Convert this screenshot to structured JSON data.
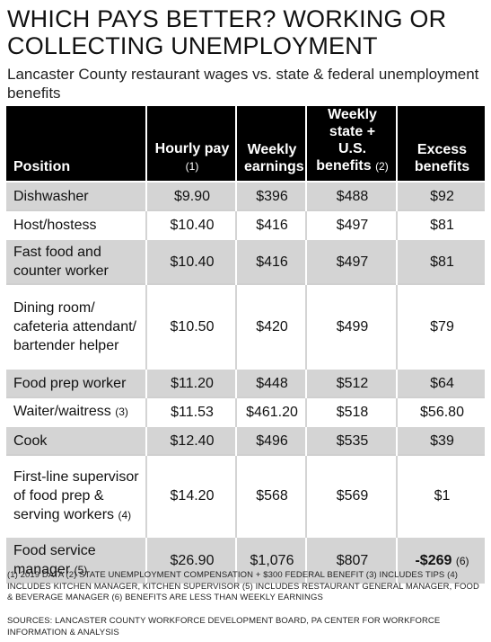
{
  "title": "WHICH PAYS BETTER? WORKING OR COLLECTING UNEMPLOYMENT",
  "subtitle": "Lancaster County restaurant wages vs. state & federal unemployment benefits",
  "table": {
    "headers": [
      {
        "label": "Position",
        "note": ""
      },
      {
        "label": "Hourly pay",
        "note": "(1)"
      },
      {
        "label": "Weekly earnings",
        "note": ""
      },
      {
        "label": "Weekly state + U.S. benefits",
        "note": "(2)"
      },
      {
        "label": "Excess benefits",
        "note": ""
      }
    ],
    "rows": [
      {
        "position": "Dishwasher",
        "note": "",
        "hourly": "$9.90",
        "weekly": "$396",
        "benefits": "$488",
        "excess": "$92",
        "excess_note": ""
      },
      {
        "position": "Host/hostess",
        "note": "",
        "hourly": "$10.40",
        "weekly": "$416",
        "benefits": "$497",
        "excess": "$81",
        "excess_note": ""
      },
      {
        "position": "Fast food and counter worker",
        "note": "",
        "hourly": "$10.40",
        "weekly": "$416",
        "benefits": "$497",
        "excess": "$81",
        "excess_note": ""
      },
      {
        "position": "Dining room/ cafeteria attendant/ bartender helper",
        "note": "",
        "hourly": "$10.50",
        "weekly": "$420",
        "benefits": "$499",
        "excess": "$79",
        "excess_note": ""
      },
      {
        "position": "Food prep worker",
        "note": "",
        "hourly": "$11.20",
        "weekly": "$448",
        "benefits": "$512",
        "excess": "$64",
        "excess_note": ""
      },
      {
        "position": "Waiter/waitress",
        "note": "(3)",
        "hourly": "$11.53",
        "weekly": "$461.20",
        "benefits": "$518",
        "excess": "$56.80",
        "excess_note": ""
      },
      {
        "position": "Cook",
        "note": "",
        "hourly": "$12.40",
        "weekly": "$496",
        "benefits": "$535",
        "excess": "$39",
        "excess_note": ""
      },
      {
        "position": "First-line supervisor of food prep & serving workers",
        "note": "(4)",
        "hourly": "$14.20",
        "weekly": "$568",
        "benefits": "$569",
        "excess": "$1",
        "excess_note": ""
      },
      {
        "position": "Food service manager",
        "note": "(5)",
        "hourly": "$26.90",
        "weekly": "$1,076",
        "benefits": "$807",
        "excess": "-$269",
        "excess_note": "(6)"
      }
    ]
  },
  "footnotes": "(1) 2019 DATA (2) STATE UNEMPLOYMENT COMPENSATION + $300 FEDERAL BENEFIT (3) INCLUDES TIPS (4) INCLUDES KITCHEN MANAGER, KITCHEN SUPERVISOR (5) INCLUDES RESTAURANT GENERAL MANAGER, FOOD & BEVERAGE MANAGER (6) BENEFITS ARE LESS THAN WEEKLY EARNINGS",
  "sources": "SOURCES: LANCASTER COUNTY WORKFORCE DEVELOPMENT BOARD, PA CENTER FOR WORKFORCE INFORMATION & ANALYSIS",
  "colors": {
    "header_bg": "#000000",
    "row_shade": "#d4d4d4",
    "row_plain": "#ffffff"
  }
}
